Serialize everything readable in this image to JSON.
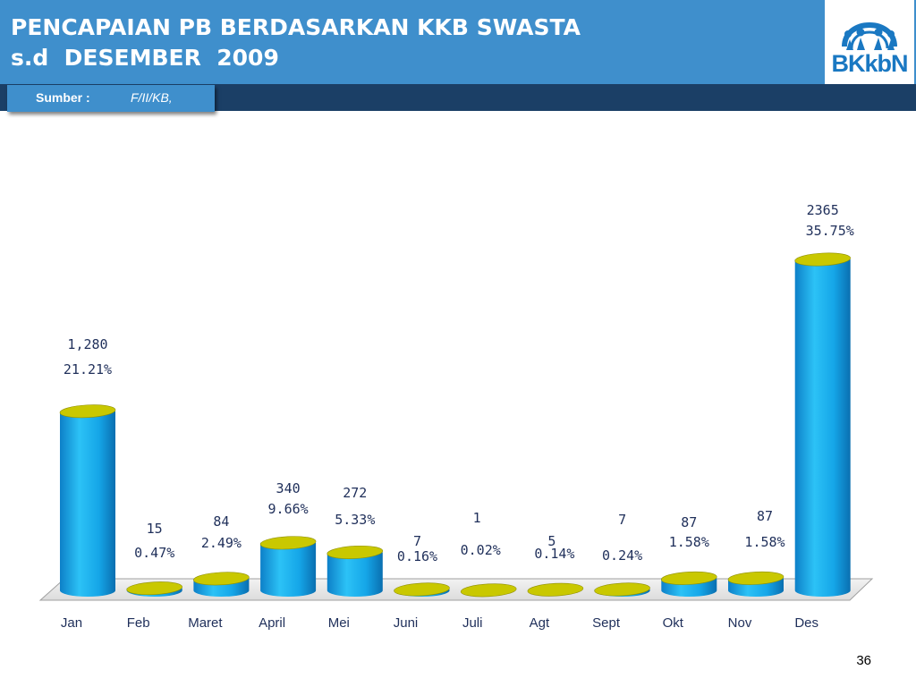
{
  "title": {
    "line1": "PENCAPAIAN PB BERDASARKAN KKB SWASTA",
    "line2": "s.d  DESEMBER  2009"
  },
  "logo": {
    "text": "BKkbN",
    "icon": "family-logo-icon"
  },
  "source": {
    "label": "Sumber :",
    "value": "F/II/KB,"
  },
  "page_number": "36",
  "colors": {
    "header": "#3f8fcc",
    "band": "#1b3f66",
    "bar": "#18a6e6",
    "bar_top": "#c9c800"
  },
  "chart_data": {
    "type": "bar",
    "categories": [
      "Jan",
      "Feb",
      "Maret",
      "April",
      "Mei",
      "Juni",
      "Juli",
      "Agt",
      "Sept",
      "Okt",
      "Nov",
      "Des"
    ],
    "values": [
      1280,
      15,
      84,
      340,
      272,
      7,
      1,
      5,
      7,
      87,
      87,
      2365
    ],
    "value_labels": [
      "1,280",
      "15",
      "84",
      "340",
      "272",
      "7",
      "1",
      "5",
      "7",
      "87",
      "87",
      "2365"
    ],
    "percent_labels": [
      "21.21%",
      "0.47%",
      "2.49%",
      "9.66%",
      "5.33%",
      "0.16%",
      "0.02%",
      "0.14%",
      "0.24%",
      "1.58%",
      "1.58%",
      "35.75%"
    ],
    "ylim": [
      0,
      2600
    ],
    "grid": false,
    "legend": "none"
  }
}
